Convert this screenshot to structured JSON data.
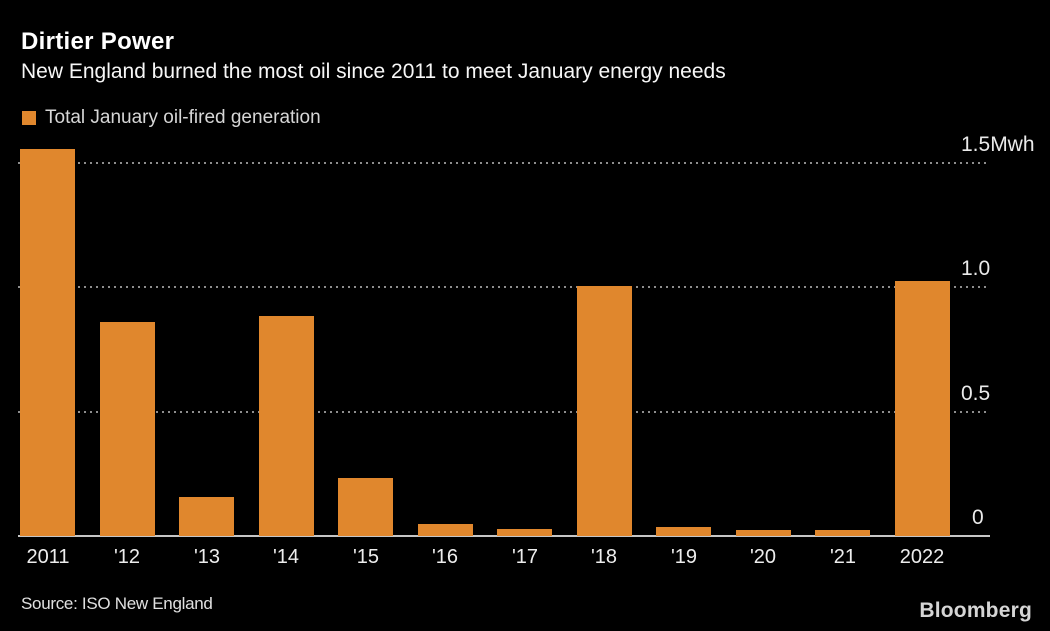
{
  "header": {
    "title": "Dirtier Power",
    "subtitle": "New England burned the most oil since 2011 to meet January energy needs"
  },
  "legend": {
    "label": "Total January oil-fired generation",
    "marker_color": "#E0872D"
  },
  "chart_data": {
    "type": "bar",
    "title": "Dirtier Power",
    "subtitle": "New England burned the most oil since 2011 to meet January energy needs",
    "series_name": "Total January oil-fired generation",
    "categories": [
      "2011",
      "'12",
      "'13",
      "'14",
      "'15",
      "'16",
      "'17",
      "'18",
      "'19",
      "'20",
      "'21",
      "2022"
    ],
    "values": [
      1.555,
      0.86,
      0.155,
      0.885,
      0.235,
      0.05,
      0.028,
      1.005,
      0.038,
      0.025,
      0.024,
      1.025
    ],
    "unit": "Mwh",
    "ylim": [
      0,
      1.5
    ],
    "y_ticks": [
      {
        "value": 1.5,
        "label": "1.5Mwh"
      },
      {
        "value": 1.0,
        "label": "1.0"
      },
      {
        "value": 0.5,
        "label": "0.5"
      },
      {
        "value": 0,
        "label": "0"
      }
    ],
    "grid": "horizontal-dotted",
    "legend_position": "top-left",
    "value_axis_position": "right",
    "bar_color": "#E0872D",
    "background_color": "#000000"
  },
  "footer": {
    "source": "Source: ISO New England",
    "brand": "Bloomberg"
  }
}
